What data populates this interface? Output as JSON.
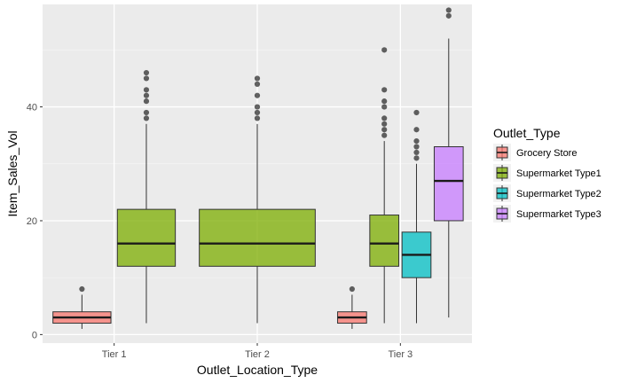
{
  "chart_data": {
    "type": "boxplot",
    "xlabel": "Outlet_Location_Type",
    "ylabel": "Item_Sales_Vol",
    "categories": [
      "Tier 1",
      "Tier 2",
      "Tier 3"
    ],
    "ylim": [
      -1.5,
      58
    ],
    "yticks": [
      0,
      20,
      40
    ],
    "grid": true,
    "legend": {
      "title": "Outlet_Type",
      "placement": "right",
      "entries": [
        {
          "label": "Grocery Store",
          "color": "#F8766D"
        },
        {
          "label": "Supermarket Type1",
          "color": "#7CAE00"
        },
        {
          "label": "Supermarket Type2",
          "color": "#00BFC4"
        },
        {
          "label": "Supermarket Type3",
          "color": "#C77CFF"
        }
      ]
    },
    "boxes": [
      {
        "category": "Tier 1",
        "outlet_type": "Grocery Store",
        "color": "#F8766D",
        "group_size": 2,
        "slot": 0,
        "min": 1,
        "q1": 2,
        "median": 3,
        "q3": 4,
        "max": 7,
        "outliers": [
          8
        ]
      },
      {
        "category": "Tier 1",
        "outlet_type": "Supermarket Type1",
        "color": "#7CAE00",
        "group_size": 2,
        "slot": 1,
        "min": 2,
        "q1": 12,
        "median": 16,
        "q3": 22,
        "max": 37,
        "outliers": [
          38,
          39,
          41,
          42,
          43,
          45,
          46
        ]
      },
      {
        "category": "Tier 2",
        "outlet_type": "Supermarket Type1",
        "color": "#7CAE00",
        "group_size": 1,
        "slot": 0,
        "min": 2,
        "q1": 12,
        "median": 16,
        "q3": 22,
        "max": 37,
        "outliers": [
          38,
          39,
          40,
          42,
          44,
          45
        ]
      },
      {
        "category": "Tier 3",
        "outlet_type": "Grocery Store",
        "color": "#F8766D",
        "group_size": 4,
        "slot": 0,
        "min": 1,
        "q1": 2,
        "median": 3,
        "q3": 4,
        "max": 7,
        "outliers": [
          8
        ]
      },
      {
        "category": "Tier 3",
        "outlet_type": "Supermarket Type1",
        "color": "#7CAE00",
        "group_size": 4,
        "slot": 1,
        "min": 2,
        "q1": 12,
        "median": 16,
        "q3": 21,
        "max": 34,
        "outliers": [
          35,
          36,
          37,
          38,
          40,
          41,
          43,
          50
        ]
      },
      {
        "category": "Tier 3",
        "outlet_type": "Supermarket Type2",
        "color": "#00BFC4",
        "group_size": 4,
        "slot": 2,
        "min": 2,
        "q1": 10,
        "median": 14,
        "q3": 18,
        "max": 30,
        "outliers": [
          31,
          32,
          33,
          34,
          36,
          39
        ]
      },
      {
        "category": "Tier 3",
        "outlet_type": "Supermarket Type3",
        "color": "#C77CFF",
        "group_size": 4,
        "slot": 3,
        "min": 3,
        "q1": 20,
        "median": 27,
        "q3": 33,
        "max": 52,
        "outliers": [
          56,
          57
        ]
      }
    ]
  }
}
